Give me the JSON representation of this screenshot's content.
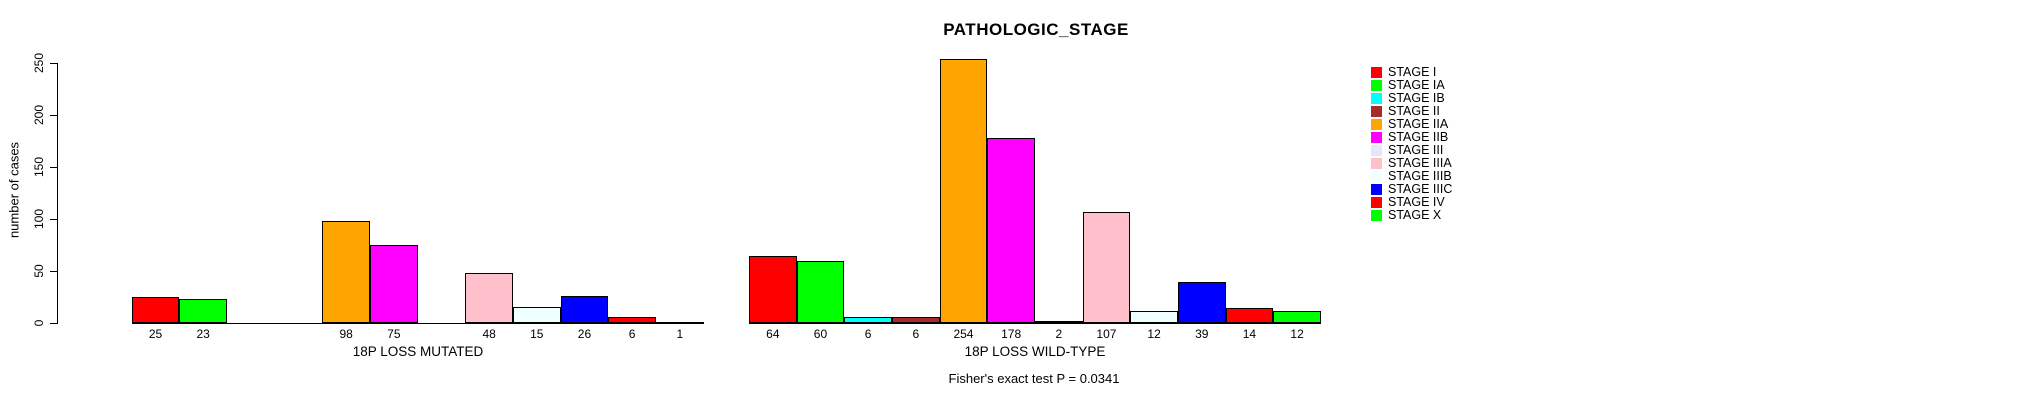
{
  "title": "PATHOLOGIC_STAGE",
  "y_axis": {
    "label": "number of cases",
    "ticks": [
      "0",
      "50",
      "100",
      "150",
      "200",
      "250"
    ]
  },
  "footer": "Fisher's exact test P = 0.0341",
  "legend": {
    "items": [
      {
        "label": "STAGE I",
        "color": "#FF0000"
      },
      {
        "label": "STAGE IA",
        "color": "#00FF00"
      },
      {
        "label": "STAGE IB",
        "color": "#00FFFF"
      },
      {
        "label": "STAGE II",
        "color": "#A52A2A"
      },
      {
        "label": "STAGE IIA",
        "color": "#FFA500"
      },
      {
        "label": "STAGE IIB",
        "color": "#FF00FF"
      },
      {
        "label": "STAGE III",
        "color": "#E6E6FA"
      },
      {
        "label": "STAGE IIIA",
        "color": "#FFC0CB"
      },
      {
        "label": "STAGE IIIB",
        "color": "#F0FFFF"
      },
      {
        "label": "STAGE IIIC",
        "color": "#0000FF"
      },
      {
        "label": "STAGE IV",
        "color": "#FF0000"
      },
      {
        "label": "STAGE X",
        "color": "#00FF00"
      }
    ]
  },
  "chart_data": {
    "type": "bar",
    "title": "PATHOLOGIC_STAGE",
    "ylabel": "number of cases",
    "xlabel": "",
    "ylim": [
      0,
      250
    ],
    "yticks": [
      0,
      50,
      100,
      150,
      200,
      250
    ],
    "grid": false,
    "legend_position": "right",
    "categories": [
      "STAGE I",
      "STAGE IA",
      "STAGE IB",
      "STAGE II",
      "STAGE IIA",
      "STAGE IIB",
      "STAGE III",
      "STAGE IIIA",
      "STAGE IIIB",
      "STAGE IIIC",
      "STAGE IV",
      "STAGE X"
    ],
    "colors": [
      "#FF0000",
      "#00FF00",
      "#00FFFF",
      "#A52A2A",
      "#FFA500",
      "#FF00FF",
      "#E6E6FA",
      "#FFC0CB",
      "#F0FFFF",
      "#0000FF",
      "#FF0000",
      "#00FF00"
    ],
    "series": [
      {
        "name": "18P LOSS MUTATED",
        "values": [
          25,
          23,
          0,
          0,
          98,
          75,
          0,
          48,
          15,
          26,
          6,
          1
        ]
      },
      {
        "name": "18P LOSS WILD-TYPE",
        "values": [
          64,
          60,
          6,
          6,
          254,
          178,
          2,
          107,
          12,
          39,
          14,
          12
        ]
      }
    ],
    "annotation": "Fisher's exact test P = 0.0341"
  }
}
